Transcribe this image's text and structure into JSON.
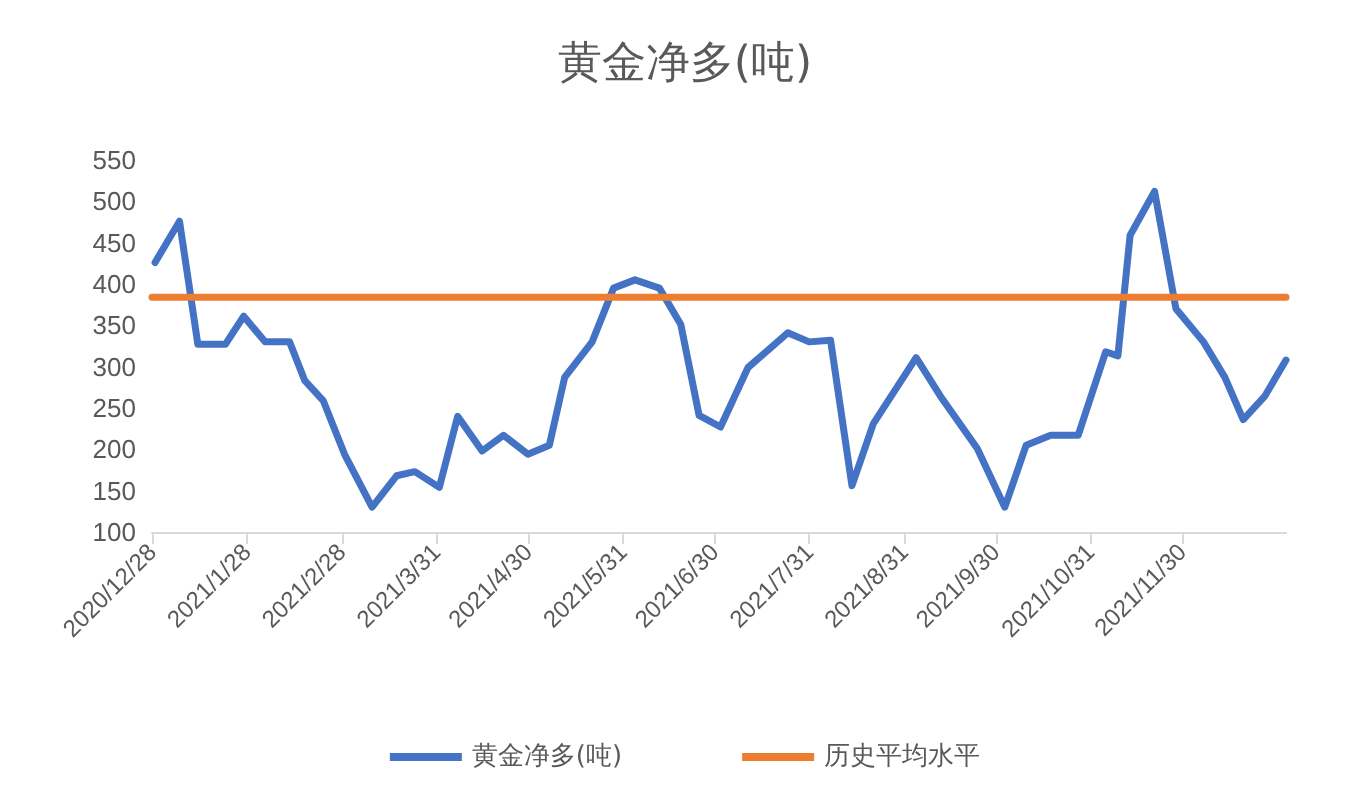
{
  "chart_data": {
    "type": "line",
    "title": "黄金净多(吨)",
    "xlim": [
      "2020-12-28",
      "2022-01-03"
    ],
    "xticks": [
      {
        "value": "2020-12-28",
        "label": "2020/12/28"
      },
      {
        "value": "2021-01-28",
        "label": "2021/1/28"
      },
      {
        "value": "2021-02-28",
        "label": "2021/2/28"
      },
      {
        "value": "2021-03-31",
        "label": "2021/3/31"
      },
      {
        "value": "2021-04-30",
        "label": "2021/4/30"
      },
      {
        "value": "2021-05-31",
        "label": "2021/5/31"
      },
      {
        "value": "2021-06-30",
        "label": "2021/6/30"
      },
      {
        "value": "2021-07-31",
        "label": "2021/7/31"
      },
      {
        "value": "2021-08-31",
        "label": "2021/8/31"
      },
      {
        "value": "2021-09-30",
        "label": "2021/9/30"
      },
      {
        "value": "2021-10-31",
        "label": "2021/10/31"
      },
      {
        "value": "2021-11-30",
        "label": "2021/11/30"
      }
    ],
    "ylim": [
      100,
      550
    ],
    "yticks": [
      100,
      150,
      200,
      250,
      300,
      350,
      400,
      450,
      500,
      550
    ],
    "grid": false,
    "legend": "bottom",
    "marker": "none",
    "line_style": "solid",
    "series": [
      {
        "name": "黄金净多(吨)",
        "color": "#4472c4",
        "x": [
          "2020-12-29",
          "2021-01-06",
          "2021-01-12",
          "2021-01-21",
          "2021-01-27",
          "2021-02-03",
          "2021-02-11",
          "2021-02-16",
          "2021-02-22",
          "2021-03-01",
          "2021-03-10",
          "2021-03-18",
          "2021-03-24",
          "2021-04-01",
          "2021-04-07",
          "2021-04-15",
          "2021-04-22",
          "2021-04-30",
          "2021-05-07",
          "2021-05-12",
          "2021-05-21",
          "2021-05-28",
          "2021-06-04",
          "2021-06-12",
          "2021-06-19",
          "2021-06-25",
          "2021-07-02",
          "2021-07-11",
          "2021-07-24",
          "2021-07-31",
          "2021-08-07",
          "2021-08-14",
          "2021-08-21",
          "2021-09-04",
          "2021-09-12",
          "2021-09-24",
          "2021-10-03",
          "2021-10-10",
          "2021-10-18",
          "2021-10-27",
          "2021-11-05",
          "2021-11-09",
          "2021-11-13",
          "2021-11-21",
          "2021-11-28",
          "2021-12-07",
          "2021-12-14",
          "2021-12-20",
          "2021-12-27",
          "2022-01-03"
        ],
        "values": [
          426,
          476,
          327,
          327,
          361,
          330,
          330,
          283,
          259,
          194,
          130,
          168,
          173,
          154,
          240,
          198,
          217,
          194,
          205,
          287,
          330,
          395,
          405,
          395,
          351,
          241,
          227,
          299,
          341,
          330,
          332,
          156,
          231,
          311,
          264,
          201,
          130,
          205,
          217,
          217,
          318,
          313,
          459,
          512,
          370,
          330,
          287,
          236,
          264,
          308
        ]
      },
      {
        "name": "历史平均水平",
        "color": "#ed7d31",
        "x": [
          "2020-12-28",
          "2022-01-03"
        ],
        "values": [
          384,
          384
        ]
      }
    ]
  }
}
